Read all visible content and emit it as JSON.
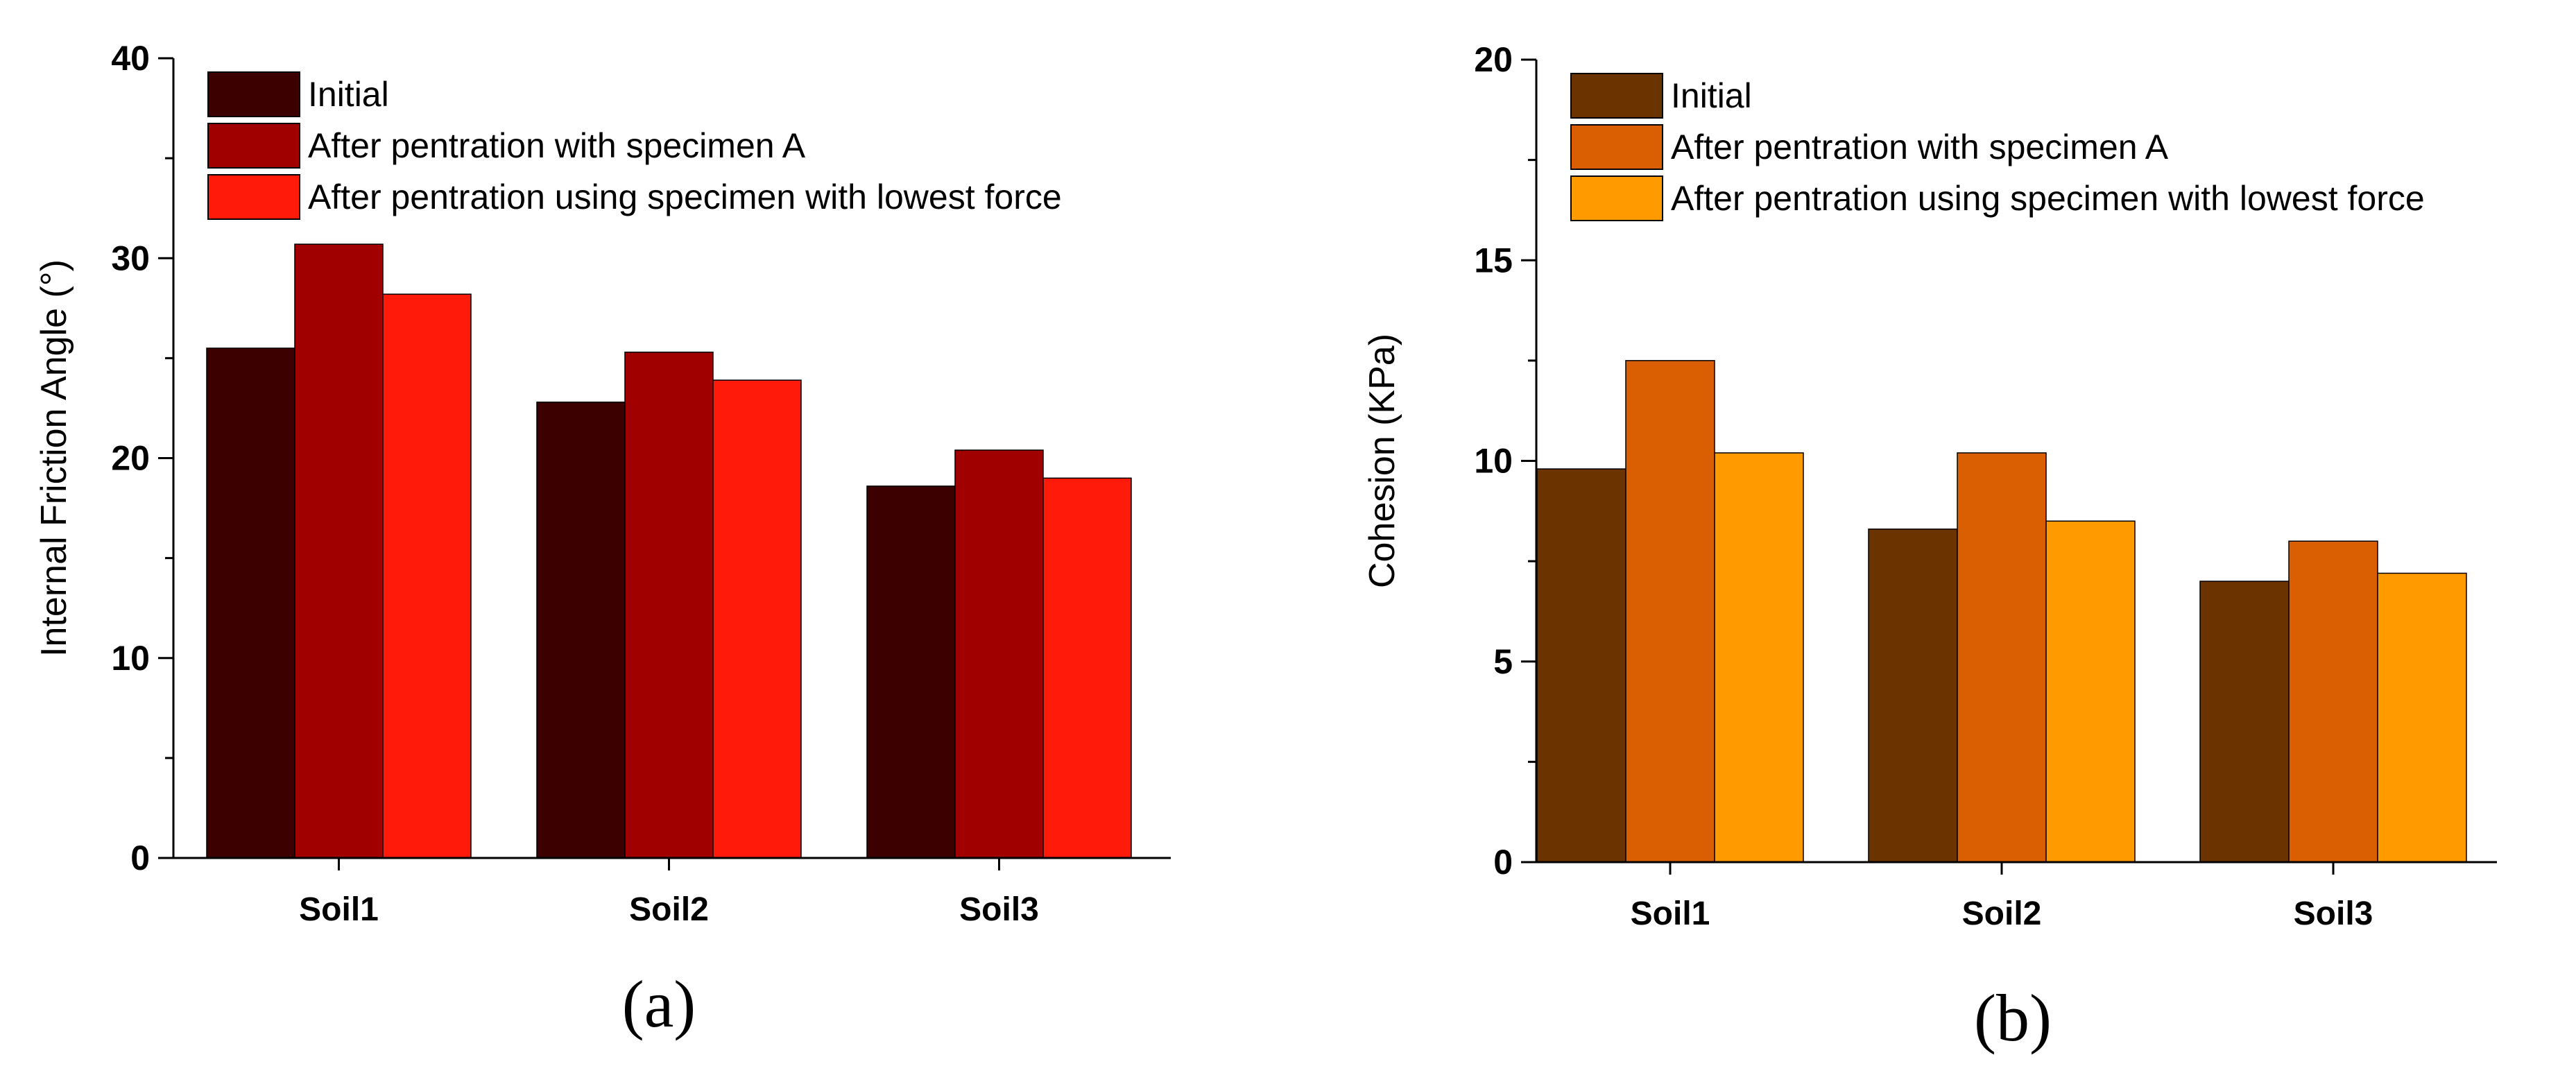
{
  "chart_data": [
    {
      "type": "bar",
      "panel_label": "(a)",
      "ylabel": "Internal Friction Angle (°)",
      "xlabel": "",
      "ylim": [
        0,
        40
      ],
      "yticks": [
        0,
        10,
        20,
        30,
        40
      ],
      "categories": [
        "Soil1",
        "Soil2",
        "Soil3"
      ],
      "legend_position": "top-left",
      "series": [
        {
          "name": "Initial",
          "color": "#3d0000",
          "values": [
            25.5,
            22.8,
            18.6
          ]
        },
        {
          "name": "After pentration with specimen A",
          "color": "#a10000",
          "values": [
            30.7,
            25.3,
            20.4
          ]
        },
        {
          "name": "After pentration using specimen with lowest force",
          "color": "#ff1a0a",
          "values": [
            28.2,
            23.9,
            19.0
          ]
        }
      ]
    },
    {
      "type": "bar",
      "panel_label": "(b)",
      "ylabel": "Cohesion (KPa)",
      "xlabel": "",
      "ylim": [
        0,
        20
      ],
      "yticks": [
        0,
        5,
        10,
        15,
        20
      ],
      "categories": [
        "Soil1",
        "Soil2",
        "Soil3"
      ],
      "legend_position": "top-left",
      "series": [
        {
          "name": "Initial",
          "color": "#6b3300",
          "values": [
            9.8,
            8.3,
            7.0
          ]
        },
        {
          "name": "After pentration with specimen A",
          "color": "#d95f02",
          "values": [
            12.5,
            10.2,
            8.0
          ]
        },
        {
          "name": "After pentration using specimen with lowest force",
          "color": "#ff9a00",
          "values": [
            10.2,
            8.5,
            7.2
          ]
        }
      ]
    }
  ]
}
